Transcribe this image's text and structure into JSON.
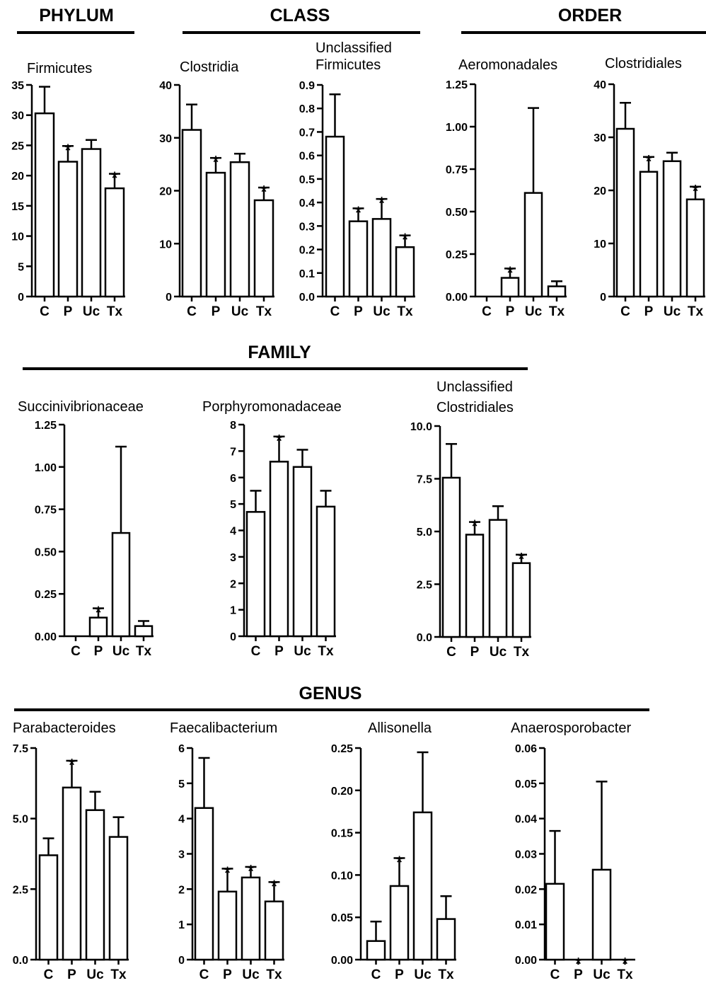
{
  "sections": [
    {
      "title": "PHYLUM"
    },
    {
      "title": "CLASS"
    },
    {
      "title": "ORDER"
    },
    {
      "title": "FAMILY"
    },
    {
      "title": "GENUS"
    }
  ],
  "chart_data": [
    {
      "type": "bar",
      "section": "PHYLUM",
      "title": "Firmicutes",
      "categories": [
        "C",
        "P",
        "Uc",
        "Tx"
      ],
      "values": [
        30.3,
        22.3,
        24.4,
        17.9
      ],
      "errors": [
        4.4,
        2.6,
        1.5,
        2.4
      ],
      "significant": [
        false,
        true,
        false,
        true
      ],
      "ylim": [
        0,
        35
      ],
      "yticks": [
        "0",
        "5",
        "10",
        "15",
        "20",
        "25",
        "30",
        "35"
      ]
    },
    {
      "type": "bar",
      "section": "CLASS",
      "title": "Clostridia",
      "categories": [
        "C",
        "P",
        "Uc",
        "Tx"
      ],
      "values": [
        31.5,
        23.4,
        25.4,
        18.2
      ],
      "errors": [
        4.8,
        2.8,
        1.6,
        2.4
      ],
      "significant": [
        false,
        true,
        false,
        true
      ],
      "ylim": [
        0,
        40
      ],
      "yticks": [
        "0",
        "10",
        "20",
        "30",
        "40"
      ]
    },
    {
      "type": "bar",
      "section": "CLASS",
      "title": [
        "Unclassified",
        "Firmicutes"
      ],
      "categories": [
        "C",
        "P",
        "Uc",
        "Tx"
      ],
      "values": [
        0.68,
        0.32,
        0.33,
        0.21
      ],
      "errors": [
        0.18,
        0.055,
        0.085,
        0.05
      ],
      "significant": [
        false,
        true,
        true,
        true
      ],
      "ylim": [
        0,
        0.9
      ],
      "yticks": [
        "0.0",
        "0.1",
        "0.2",
        "0.3",
        "0.4",
        "0.5",
        "0.6",
        "0.7",
        "0.8",
        "0.9"
      ]
    },
    {
      "type": "bar",
      "section": "ORDER",
      "title": "Aeromonadales",
      "categories": [
        "C",
        "P",
        "Uc",
        "Tx"
      ],
      "values": [
        0.0,
        0.11,
        0.61,
        0.06
      ],
      "errors": [
        0,
        0.055,
        0.5,
        0.03
      ],
      "significant": [
        false,
        true,
        false,
        false
      ],
      "ylim": [
        0,
        1.25
      ],
      "yticks": [
        "0.00",
        "0.25",
        "0.50",
        "0.75",
        "1.00",
        "1.25"
      ]
    },
    {
      "type": "bar",
      "section": "ORDER",
      "title": "Clostridiales",
      "categories": [
        "C",
        "P",
        "Uc",
        "Tx"
      ],
      "values": [
        31.6,
        23.5,
        25.5,
        18.3
      ],
      "errors": [
        4.9,
        2.8,
        1.6,
        2.4
      ],
      "significant": [
        false,
        true,
        false,
        true
      ],
      "ylim": [
        0,
        40
      ],
      "yticks": [
        "0",
        "10",
        "20",
        "30",
        "40"
      ]
    },
    {
      "type": "bar",
      "section": "FAMILY",
      "title": "Succinivibrionaceae",
      "categories": [
        "C",
        "P",
        "Uc",
        "Tx"
      ],
      "values": [
        0.0,
        0.11,
        0.61,
        0.06
      ],
      "errors": [
        0,
        0.055,
        0.51,
        0.03
      ],
      "significant": [
        false,
        true,
        false,
        false
      ],
      "ylim": [
        0,
        1.25
      ],
      "yticks": [
        "0.00",
        "0.25",
        "0.50",
        "0.75",
        "1.00",
        "1.25"
      ]
    },
    {
      "type": "bar",
      "section": "FAMILY",
      "title": "Porphyromonadaceae",
      "categories": [
        "C",
        "P",
        "Uc",
        "Tx"
      ],
      "values": [
        4.7,
        6.6,
        6.4,
        4.9
      ],
      "errors": [
        0.8,
        0.95,
        0.65,
        0.6
      ],
      "significant": [
        false,
        true,
        false,
        false
      ],
      "ylim": [
        0,
        8
      ],
      "yticks": [
        "0",
        "1",
        "2",
        "3",
        "4",
        "5",
        "6",
        "7",
        "8"
      ]
    },
    {
      "type": "bar",
      "section": "FAMILY",
      "title": [
        "Unclassified",
        "Clostridiales"
      ],
      "categories": [
        "C",
        "P",
        "Uc",
        "Tx"
      ],
      "values": [
        7.55,
        4.85,
        5.55,
        3.5
      ],
      "errors": [
        1.6,
        0.6,
        0.65,
        0.4
      ],
      "significant": [
        false,
        true,
        false,
        true
      ],
      "ylim": [
        0,
        10
      ],
      "yticks": [
        "0.0",
        "2.5",
        "5.0",
        "7.5",
        "10.0"
      ]
    },
    {
      "type": "bar",
      "section": "GENUS",
      "title": "Parabacteroides",
      "categories": [
        "C",
        "P",
        "Uc",
        "Tx"
      ],
      "values": [
        3.7,
        6.1,
        5.3,
        4.35
      ],
      "errors": [
        0.6,
        0.95,
        0.65,
        0.7
      ],
      "significant": [
        false,
        true,
        false,
        false
      ],
      "ylim": [
        0,
        7.5
      ],
      "yticks": [
        "0.0",
        "2.5",
        "5.0",
        "7.5"
      ]
    },
    {
      "type": "bar",
      "section": "GENUS",
      "title": "Faecalibacterium",
      "categories": [
        "C",
        "P",
        "Uc",
        "Tx"
      ],
      "values": [
        4.3,
        1.93,
        2.33,
        1.65
      ],
      "errors": [
        1.42,
        0.65,
        0.3,
        0.55
      ],
      "significant": [
        false,
        true,
        true,
        true
      ],
      "ylim": [
        0,
        6
      ],
      "yticks": [
        "0",
        "1",
        "2",
        "3",
        "4",
        "5",
        "6"
      ]
    },
    {
      "type": "bar",
      "section": "GENUS",
      "title": "Allisonella",
      "categories": [
        "C",
        "P",
        "Uc",
        "Tx"
      ],
      "values": [
        0.022,
        0.087,
        0.174,
        0.048
      ],
      "errors": [
        0.023,
        0.033,
        0.071,
        0.027
      ],
      "significant": [
        false,
        true,
        false,
        false
      ],
      "ylim": [
        0,
        0.25
      ],
      "yticks": [
        "0.00",
        "0.05",
        "0.10",
        "0.15",
        "0.20",
        "0.25"
      ]
    },
    {
      "type": "bar",
      "section": "GENUS",
      "title": "Anaerosporobacter",
      "categories": [
        "C",
        "P",
        "Uc",
        "Tx"
      ],
      "values": [
        0.0215,
        0.0,
        0.0255,
        0.0
      ],
      "errors": [
        0.015,
        0,
        0.025,
        0
      ],
      "significant": [
        false,
        true,
        false,
        true
      ],
      "ylim": [
        0,
        0.06
      ],
      "yticks": [
        "0.00",
        "0.01",
        "0.02",
        "0.03",
        "0.04",
        "0.05",
        "0.06"
      ]
    }
  ]
}
